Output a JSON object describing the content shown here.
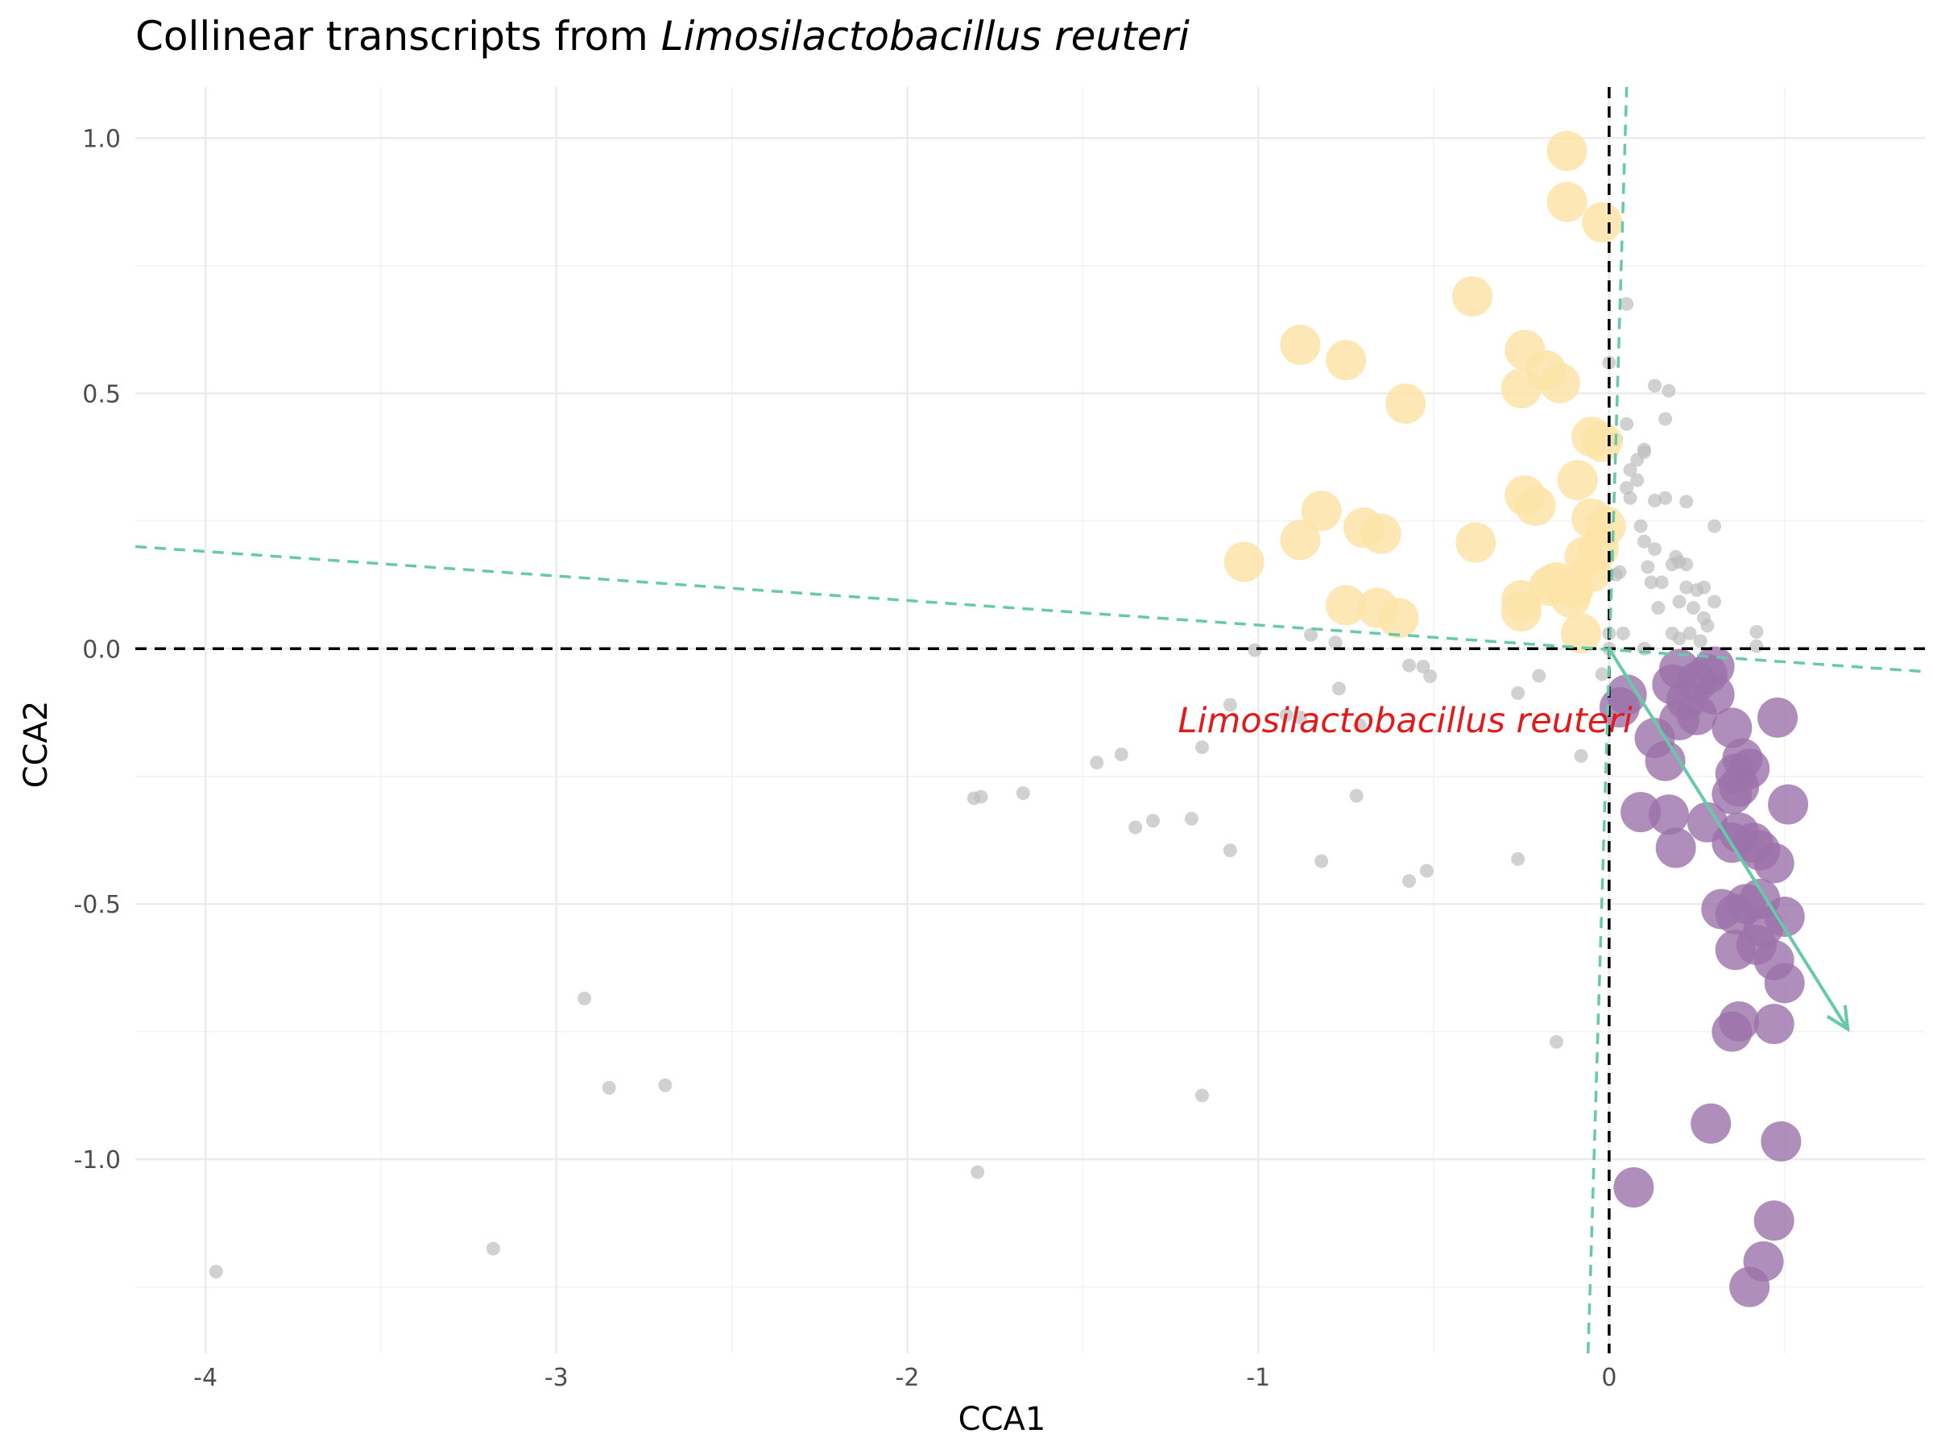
{
  "chart_data": {
    "type": "scatter",
    "title": {
      "prefix": "Collinear transcripts from ",
      "italic": "Limosilactobacillus reuteri"
    },
    "xlabel": "CCA1",
    "ylabel": "CCA2",
    "xlim": [
      -4.2,
      0.9
    ],
    "ylim": [
      -1.38,
      1.1
    ],
    "x_ticks": [
      -4,
      -3,
      -2,
      -1,
      0
    ],
    "x_tick_labels": [
      "-4",
      "-3",
      "-2",
      "-1",
      "0"
    ],
    "y_ticks": [
      -1.0,
      -0.5,
      0.0,
      0.5,
      1.0
    ],
    "y_tick_labels": [
      "-1.0",
      "-0.5",
      "0.0",
      "0.5",
      "1.0"
    ],
    "grid": true,
    "legend": "none",
    "colors": {
      "background_points": "#bdbdbd",
      "positive_points": "#fde3a7",
      "negative_points": "#9b72aa",
      "arrow": "#66c9a8",
      "dashed_lines": "#66c9a8",
      "reference_lines": "#000000",
      "annotation": "#e31a1c"
    },
    "reference_lines": {
      "x": 0,
      "y": 0
    },
    "dashed_lines": [
      {
        "x1": -4.2,
        "y1": 0.2,
        "x2": 0.9,
        "y2": -0.045
      },
      {
        "x1": -0.06,
        "y1": -1.38,
        "x2": 0.05,
        "y2": 1.1
      }
    ],
    "arrow": {
      "x1": 0.0,
      "y1": 0.0,
      "x2": 0.68,
      "y2": -0.745
    },
    "annotation": {
      "text": "Limosilactobacillus reuteri",
      "x": -0.14,
      "y": -0.14
    },
    "series": [
      {
        "role": "background",
        "points": [
          [
            -3.97,
            -1.22
          ],
          [
            -3.18,
            -1.175
          ],
          [
            -2.92,
            -0.685
          ],
          [
            -2.85,
            -0.86
          ],
          [
            -2.69,
            -0.855
          ],
          [
            -1.8,
            -1.025
          ],
          [
            -1.79,
            -0.29
          ],
          [
            -1.81,
            -0.293
          ],
          [
            -1.67,
            -0.283
          ],
          [
            -1.46,
            -0.223
          ],
          [
            -1.39,
            -0.207
          ],
          [
            -1.35,
            -0.35
          ],
          [
            -1.3,
            -0.337
          ],
          [
            -1.19,
            -0.333
          ],
          [
            -1.16,
            -0.193
          ],
          [
            -1.16,
            -0.875
          ],
          [
            -1.08,
            -0.395
          ],
          [
            -1.08,
            -0.11
          ],
          [
            -1.01,
            -0.003
          ],
          [
            -0.92,
            -0.13
          ],
          [
            -0.88,
            -0.135
          ],
          [
            -0.85,
            0.027
          ],
          [
            -0.82,
            -0.416
          ],
          [
            -0.78,
            0.012
          ],
          [
            -0.77,
            -0.078
          ],
          [
            -0.72,
            -0.288
          ],
          [
            -0.71,
            -0.15
          ],
          [
            -0.57,
            -0.455
          ],
          [
            -0.57,
            -0.033
          ],
          [
            -0.53,
            -0.035
          ],
          [
            -0.52,
            -0.435
          ],
          [
            -0.51,
            -0.054
          ],
          [
            -0.26,
            -0.087
          ],
          [
            -0.26,
            -0.412
          ],
          [
            -0.2,
            -0.053
          ],
          [
            -0.15,
            -0.77
          ],
          [
            -0.08,
            -0.21
          ],
          [
            0.0,
            0.56
          ],
          [
            0.05,
            0.675
          ],
          [
            0.02,
            0.41
          ],
          [
            0.05,
            0.44
          ],
          [
            0.08,
            0.37
          ],
          [
            0.1,
            0.39
          ],
          [
            0.1,
            0.385
          ],
          [
            0.13,
            0.515
          ],
          [
            0.16,
            0.45
          ],
          [
            0.17,
            0.505
          ],
          [
            0.06,
            0.35
          ],
          [
            0.09,
            0.24
          ],
          [
            0.08,
            0.33
          ],
          [
            0.06,
            0.295
          ],
          [
            0.05,
            0.315
          ],
          [
            0.02,
            0.145
          ],
          [
            0.03,
            0.15
          ],
          [
            0.1,
            0.21
          ],
          [
            0.13,
            0.195
          ],
          [
            0.11,
            0.16
          ],
          [
            0.12,
            0.13
          ],
          [
            0.15,
            0.13
          ],
          [
            0.13,
            0.29
          ],
          [
            0.16,
            0.295
          ],
          [
            0.18,
            0.165
          ],
          [
            0.19,
            0.18
          ],
          [
            0.2,
            0.17
          ],
          [
            0.22,
            0.288
          ],
          [
            0.22,
            0.165
          ],
          [
            0.14,
            0.08
          ],
          [
            0.2,
            0.092
          ],
          [
            0.22,
            0.12
          ],
          [
            0.25,
            0.115
          ],
          [
            0.24,
            0.08
          ],
          [
            0.27,
            0.12
          ],
          [
            0.27,
            0.06
          ],
          [
            0.28,
            0.045
          ],
          [
            0.3,
            0.092
          ],
          [
            0.3,
            0.24
          ],
          [
            0.18,
            0.03
          ],
          [
            0.2,
            0.02
          ],
          [
            0.23,
            0.03
          ],
          [
            0.26,
            0.015
          ],
          [
            0.42,
            0.033
          ],
          [
            0.42,
            0.005
          ],
          [
            -0.02,
            -0.05
          ],
          [
            0.0,
            0.03
          ],
          [
            0.0,
            0.0
          ],
          [
            0.04,
            0.03
          ],
          [
            0.1,
            0.0
          ]
        ]
      },
      {
        "role": "positive",
        "points": [
          [
            -0.12,
            0.975
          ],
          [
            -0.12,
            0.875
          ],
          [
            -0.02,
            0.835
          ],
          [
            -0.39,
            0.69
          ],
          [
            -0.88,
            0.595
          ],
          [
            -0.75,
            0.565
          ],
          [
            -0.58,
            0.48
          ],
          [
            -0.24,
            0.585
          ],
          [
            -0.18,
            0.545
          ],
          [
            -0.14,
            0.52
          ],
          [
            -0.25,
            0.51
          ],
          [
            -0.05,
            0.415
          ],
          [
            -0.02,
            0.405
          ],
          [
            -0.09,
            0.33
          ],
          [
            -0.24,
            0.3
          ],
          [
            -0.21,
            0.28
          ],
          [
            -0.82,
            0.27
          ],
          [
            -0.7,
            0.237
          ],
          [
            -0.65,
            0.225
          ],
          [
            -0.88,
            0.213
          ],
          [
            -0.38,
            0.208
          ],
          [
            -1.04,
            0.17
          ],
          [
            -0.05,
            0.255
          ],
          [
            -0.01,
            0.24
          ],
          [
            -0.07,
            0.18
          ],
          [
            -0.03,
            0.195
          ],
          [
            -0.15,
            0.13
          ],
          [
            -0.17,
            0.123
          ],
          [
            -0.11,
            0.1
          ],
          [
            -0.75,
            0.085
          ],
          [
            -0.66,
            0.08
          ],
          [
            -0.6,
            0.06
          ],
          [
            -0.25,
            0.095
          ],
          [
            -0.25,
            0.073
          ],
          [
            -0.08,
            0.03
          ],
          [
            -0.05,
            0.15
          ],
          [
            -0.1,
            0.12
          ]
        ]
      },
      {
        "role": "negative",
        "points": [
          [
            0.05,
            -0.09
          ],
          [
            0.03,
            -0.115
          ],
          [
            0.2,
            -0.04
          ],
          [
            0.28,
            -0.05
          ],
          [
            0.3,
            -0.035
          ],
          [
            0.25,
            -0.065
          ],
          [
            0.18,
            -0.07
          ],
          [
            0.22,
            -0.1
          ],
          [
            0.3,
            -0.09
          ],
          [
            0.35,
            -0.155
          ],
          [
            0.2,
            -0.14
          ],
          [
            0.25,
            -0.13
          ],
          [
            0.13,
            -0.175
          ],
          [
            0.16,
            -0.22
          ],
          [
            0.48,
            -0.135
          ],
          [
            0.38,
            -0.215
          ],
          [
            0.4,
            -0.235
          ],
          [
            0.36,
            -0.245
          ],
          [
            0.37,
            -0.27
          ],
          [
            0.35,
            -0.285
          ],
          [
            0.51,
            -0.305
          ],
          [
            0.09,
            -0.32
          ],
          [
            0.17,
            -0.325
          ],
          [
            0.28,
            -0.34
          ],
          [
            0.37,
            -0.36
          ],
          [
            0.35,
            -0.38
          ],
          [
            0.41,
            -0.38
          ],
          [
            0.43,
            -0.395
          ],
          [
            0.19,
            -0.39
          ],
          [
            0.47,
            -0.42
          ],
          [
            0.43,
            -0.49
          ],
          [
            0.39,
            -0.5
          ],
          [
            0.32,
            -0.51
          ],
          [
            0.36,
            -0.52
          ],
          [
            0.44,
            -0.545
          ],
          [
            0.5,
            -0.525
          ],
          [
            0.42,
            -0.58
          ],
          [
            0.36,
            -0.59
          ],
          [
            0.47,
            -0.61
          ],
          [
            0.5,
            -0.655
          ],
          [
            0.37,
            -0.73
          ],
          [
            0.47,
            -0.735
          ],
          [
            0.35,
            -0.75
          ],
          [
            0.29,
            -0.93
          ],
          [
            0.49,
            -0.965
          ],
          [
            0.07,
            -1.055
          ],
          [
            0.47,
            -1.12
          ],
          [
            0.44,
            -1.2
          ],
          [
            0.4,
            -1.25
          ]
        ]
      }
    ]
  }
}
